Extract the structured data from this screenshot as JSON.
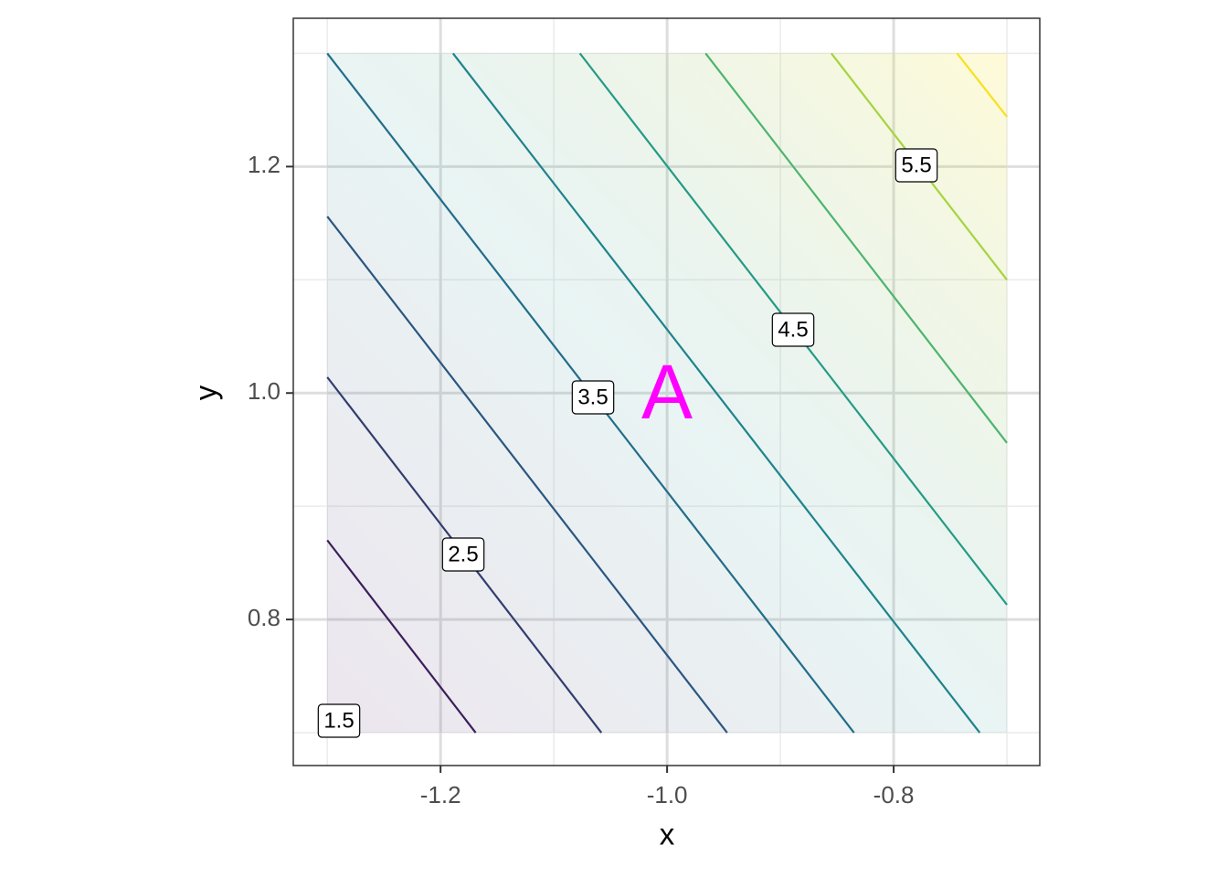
{
  "chart_data": {
    "type": "contour",
    "x_label": "x",
    "y_label": "y",
    "xlim": [
      -1.33,
      -0.671
    ],
    "ylim": [
      0.671,
      1.331
    ],
    "xticks": [
      -1.2,
      {
        "value": -1,
        "label": "-1.0"
      },
      -0.8
    ],
    "yticks": [
      0.8,
      {
        "value": 1,
        "label": "1.0"
      },
      1.2
    ],
    "minor_xticks": [
      -1.3,
      -1.1,
      -0.9,
      -0.7
    ],
    "minor_yticks": [
      0.7,
      0.9,
      1.1,
      1.3
    ],
    "grid": true,
    "contours": [
      {
        "color": "#3b1e5a",
        "x": [
          -1.3,
          -1.169
        ],
        "y": [
          0.87,
          0.7
        ]
      },
      {
        "color": "#323d6e",
        "x": [
          -1.3,
          -1.058
        ],
        "y": [
          1.014,
          0.7
        ]
      },
      {
        "color": "#2b5680",
        "x": [
          -1.3,
          -0.947
        ],
        "y": [
          1.156,
          0.7
        ]
      },
      {
        "color": "#226d8a",
        "x": [
          -1.3,
          -0.835
        ],
        "y": [
          1.3,
          0.7
        ]
      },
      {
        "color": "#1e838b",
        "x": [
          -1.189,
          -0.724
        ],
        "y": [
          1.3,
          0.7
        ]
      },
      {
        "color": "#249a85",
        "x": [
          -1.077,
          -0.7
        ],
        "y": [
          1.3,
          0.813
        ]
      },
      {
        "color": "#4db46e",
        "x": [
          -0.966,
          -0.7
        ],
        "y": [
          1.3,
          0.956
        ]
      },
      {
        "color": "#a5d43f",
        "x": [
          -0.855,
          -0.7
        ],
        "y": [
          1.3,
          1.1
        ]
      },
      {
        "color": "#f7e11f",
        "x": [
          -0.744,
          -0.7
        ],
        "y": [
          1.3,
          1.244
        ]
      }
    ],
    "contour_labels": [
      "1.5",
      "2.5",
      "3.5",
      "4.5",
      "5.5"
    ],
    "annotation": "A",
    "annotation_color": "#ff00ff"
  }
}
